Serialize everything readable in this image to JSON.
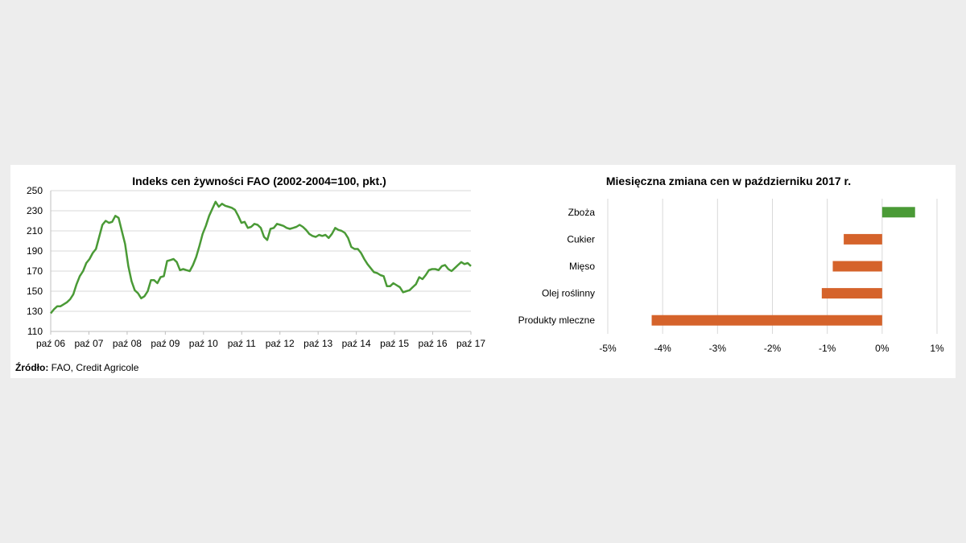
{
  "colors": {
    "line": "#4a9a36",
    "positive_bar": "#4a9a36",
    "negative_bar": "#d5632b",
    "grid": "#d9d9d9",
    "background": "#ededed"
  },
  "source": {
    "label": "Źródło:",
    "text": " FAO, Credit Agricole"
  },
  "chart_data": [
    {
      "type": "line",
      "title": "Indeks cen żywności  FAO (2002-2004=100, pkt.)",
      "xlabel": "",
      "ylabel": "",
      "ylim": [
        110,
        250
      ],
      "yticks": [
        110,
        130,
        150,
        170,
        190,
        210,
        230,
        250
      ],
      "grid": true,
      "legend": "none",
      "x_tick_labels": [
        "paź 06",
        "paź 07",
        "paź 08",
        "paź 09",
        "paź 10",
        "paź 11",
        "paź 12",
        "paź 13",
        "paź 14",
        "paź 15",
        "paź 16",
        "paź 17"
      ],
      "series": [
        {
          "values": [
            128,
            132,
            135,
            135,
            137,
            139,
            142,
            147,
            157,
            165,
            170,
            178,
            182,
            188,
            192,
            204,
            216,
            220,
            218,
            219,
            225,
            223,
            210,
            197,
            175,
            160,
            151,
            148,
            143,
            145,
            150,
            161,
            161,
            158,
            164,
            165,
            180,
            181,
            182,
            179,
            171,
            172,
            171,
            170,
            176,
            184,
            195,
            207,
            215,
            225,
            232,
            239,
            234,
            237,
            235,
            234,
            233,
            231,
            225,
            218,
            219,
            213,
            214,
            217,
            216,
            213,
            204,
            201,
            212,
            213,
            217,
            216,
            215,
            213,
            212,
            213,
            214,
            216,
            214,
            211,
            207,
            205,
            204,
            206,
            205,
            206,
            203,
            207,
            213,
            211,
            210,
            208,
            203,
            194,
            192,
            192,
            188,
            182,
            177,
            173,
            169,
            168,
            166,
            165,
            155,
            155,
            158,
            156,
            154,
            149,
            150,
            151,
            154,
            157,
            164,
            162,
            166,
            171,
            172,
            172,
            171,
            175,
            176,
            172,
            170,
            173,
            176,
            179,
            177,
            178,
            175
          ]
        }
      ]
    },
    {
      "type": "bar",
      "orientation": "horizontal",
      "title": "Miesięczna  zmiana  cen  w  październiku  2017  r.",
      "xlabel": "",
      "ylabel": "",
      "xlim": [
        -5,
        1
      ],
      "xticks": [
        -5,
        -4,
        -3,
        -2,
        -1,
        0,
        1
      ],
      "xtick_labels": [
        "-5%",
        "-4%",
        "-3%",
        "-2%",
        "-1%",
        "0%",
        "1%"
      ],
      "grid": true,
      "legend": "none",
      "categories": [
        "Zboża",
        "Cukier",
        "Mięso",
        "Olej roślinny",
        "Produkty mleczne"
      ],
      "values": [
        0.6,
        -0.7,
        -0.9,
        -1.1,
        -4.2
      ],
      "unit": "%"
    }
  ]
}
